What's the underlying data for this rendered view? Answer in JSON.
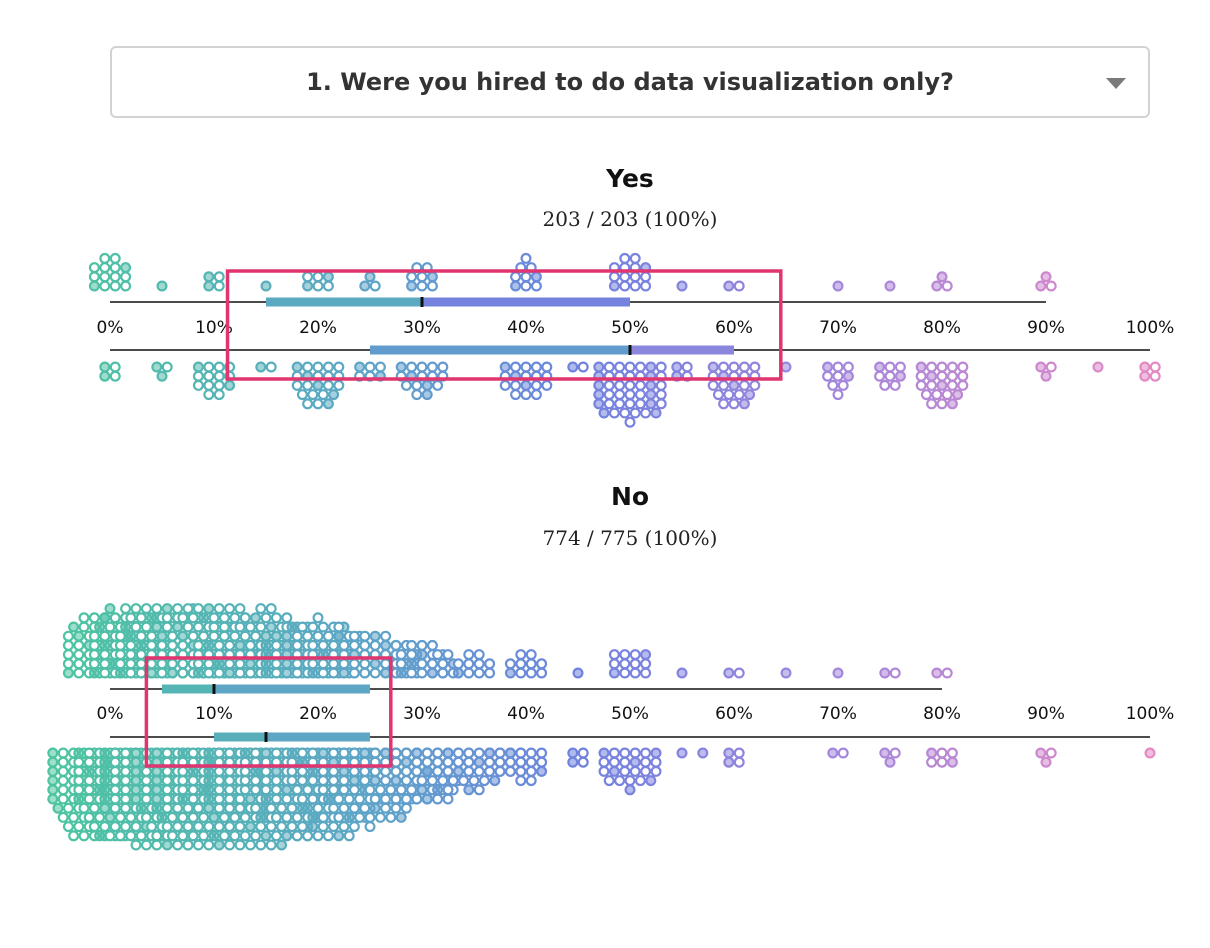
{
  "question": {
    "label": "1. Were you hired to do data visualization only?",
    "caret_icon": "triangle-down-icon"
  },
  "colors": {
    "teal": "#4fc0a6",
    "steel": "#5ea4c8",
    "blue": "#6f82df",
    "purple": "#a387dc",
    "pink": "#e48ac5",
    "highlight": "#e0356e",
    "median": "#111111"
  },
  "chart_data": [
    {
      "type": "beeswarm",
      "title": "Yes",
      "subtitle": "203 / 203 (100%)",
      "x_ticks": [
        "0%",
        "10%",
        "20%",
        "30%",
        "40%",
        "50%",
        "60%",
        "70%",
        "80%",
        "90%",
        "100%"
      ],
      "xlim": [
        0,
        100
      ],
      "top_axis_extent": [
        0,
        90
      ],
      "top_bar": {
        "q1": 15,
        "median": 30,
        "q3": 50
      },
      "bottom_bar": {
        "q1": 25,
        "median": 50,
        "q3": 60
      },
      "highlight_range": [
        11.3,
        64.5
      ],
      "top_counts": [
        [
          0,
          14
        ],
        [
          5,
          1
        ],
        [
          10,
          4
        ],
        [
          15,
          1
        ],
        [
          20,
          6
        ],
        [
          25,
          3
        ],
        [
          30,
          8
        ],
        [
          40,
          9
        ],
        [
          50,
          14
        ],
        [
          55,
          1
        ],
        [
          60,
          2
        ],
        [
          70,
          1
        ],
        [
          75,
          1
        ],
        [
          80,
          3
        ],
        [
          90,
          3
        ]
      ],
      "bottom_counts": [
        [
          0,
          4
        ],
        [
          5,
          3
        ],
        [
          10,
          14
        ],
        [
          15,
          2
        ],
        [
          20,
          22
        ],
        [
          25,
          6
        ],
        [
          30,
          16
        ],
        [
          40,
          18
        ],
        [
          45,
          2
        ],
        [
          50,
          42
        ],
        [
          55,
          4
        ],
        [
          60,
          22
        ],
        [
          65,
          1
        ],
        [
          70,
          9
        ],
        [
          75,
          8
        ],
        [
          80,
          22
        ],
        [
          90,
          3
        ],
        [
          95,
          1
        ],
        [
          100,
          4
        ]
      ]
    },
    {
      "type": "beeswarm",
      "title": "No",
      "subtitle": "774 / 775 (100%)",
      "x_ticks": [
        "0%",
        "10%",
        "20%",
        "30%",
        "40%",
        "50%",
        "60%",
        "70%",
        "80%",
        "90%",
        "100%"
      ],
      "xlim": [
        0,
        100
      ],
      "top_axis_extent": [
        0,
        80
      ],
      "top_bar": {
        "q1": 5,
        "median": 10,
        "q3": 25
      },
      "bottom_bar": {
        "q1": 10,
        "median": 15,
        "q3": 25
      },
      "highlight_range": [
        3.5,
        27
      ],
      "top_counts": [
        [
          0,
          60
        ],
        [
          2,
          55
        ],
        [
          5,
          64
        ],
        [
          8,
          60
        ],
        [
          10,
          66
        ],
        [
          12,
          44
        ],
        [
          15,
          52
        ],
        [
          18,
          36
        ],
        [
          20,
          42
        ],
        [
          22,
          30
        ],
        [
          25,
          28
        ],
        [
          28,
          14
        ],
        [
          30,
          18
        ],
        [
          32,
          8
        ],
        [
          35,
          10
        ],
        [
          40,
          10
        ],
        [
          45,
          1
        ],
        [
          50,
          12
        ],
        [
          55,
          1
        ],
        [
          60,
          2
        ],
        [
          65,
          1
        ],
        [
          70,
          1
        ],
        [
          75,
          2
        ],
        [
          80,
          2
        ]
      ],
      "bottom_counts": [
        [
          0,
          110
        ],
        [
          2,
          100
        ],
        [
          5,
          120
        ],
        [
          8,
          110
        ],
        [
          10,
          120
        ],
        [
          12,
          95
        ],
        [
          15,
          118
        ],
        [
          18,
          85
        ],
        [
          20,
          100
        ],
        [
          22,
          70
        ],
        [
          25,
          75
        ],
        [
          28,
          45
        ],
        [
          30,
          45
        ],
        [
          32,
          25
        ],
        [
          35,
          25
        ],
        [
          38,
          12
        ],
        [
          40,
          14
        ],
        [
          45,
          4
        ],
        [
          50,
          24
        ],
        [
          55,
          1
        ],
        [
          57,
          1
        ],
        [
          60,
          4
        ],
        [
          70,
          2
        ],
        [
          75,
          3
        ],
        [
          80,
          6
        ],
        [
          90,
          3
        ],
        [
          100,
          1
        ]
      ]
    }
  ]
}
